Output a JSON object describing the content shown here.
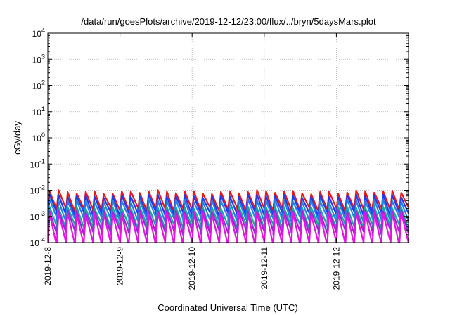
{
  "chart_data": {
    "type": "line",
    "title": "/data/run/goesPlots/archive/2019-12-12/23:00/flux/../bryn/5daysMars.plot",
    "xlabel": "Coordinated Universal Time (UTC)",
    "ylabel": "cGy/day",
    "yscale": "log",
    "ylim": [
      0.0001,
      10000
    ],
    "y_ticks": [
      {
        "base": "10",
        "exp": "-4",
        "value": 0.0001
      },
      {
        "base": "10",
        "exp": "-3",
        "value": 0.001
      },
      {
        "base": "10",
        "exp": "-2",
        "value": 0.01
      },
      {
        "base": "10",
        "exp": "-1",
        "value": 0.1
      },
      {
        "base": "10",
        "exp": "0",
        "value": 1
      },
      {
        "base": "10",
        "exp": "1",
        "value": 10
      },
      {
        "base": "10",
        "exp": "2",
        "value": 100
      },
      {
        "base": "10",
        "exp": "3",
        "value": 1000
      },
      {
        "base": "10",
        "exp": "4",
        "value": 10000
      }
    ],
    "xlim": [
      "2019-12-08",
      "2019-12-13"
    ],
    "x_ticks": [
      "2019-12-8",
      "2019-12-9",
      "2019-12-10",
      "2019-12-11",
      "2019-12-12"
    ],
    "grid": true,
    "sawtooth_period_hours": 3,
    "series": [
      {
        "color": "#e8171b",
        "peak": 0.0085,
        "trough": 0.0018,
        "trend": 0.12
      },
      {
        "color": "#1f3cf0",
        "peak": 0.006,
        "trough": 0.0012,
        "trend": 0.1
      },
      {
        "color": "#2a7fe0",
        "peak": 0.004,
        "trough": 0.00075,
        "trend": 0.1
      },
      {
        "color": "#15a8a0",
        "peak": 0.0022,
        "trough": 0.0004,
        "trend": 0.08
      },
      {
        "color": "#9b26d4",
        "peak": 0.0016,
        "trough": 0.00025,
        "trend": 0.08
      },
      {
        "color": "#e515e0",
        "peak": 0.0013,
        "trough": 9e-05,
        "trend": 0.08
      }
    ]
  }
}
